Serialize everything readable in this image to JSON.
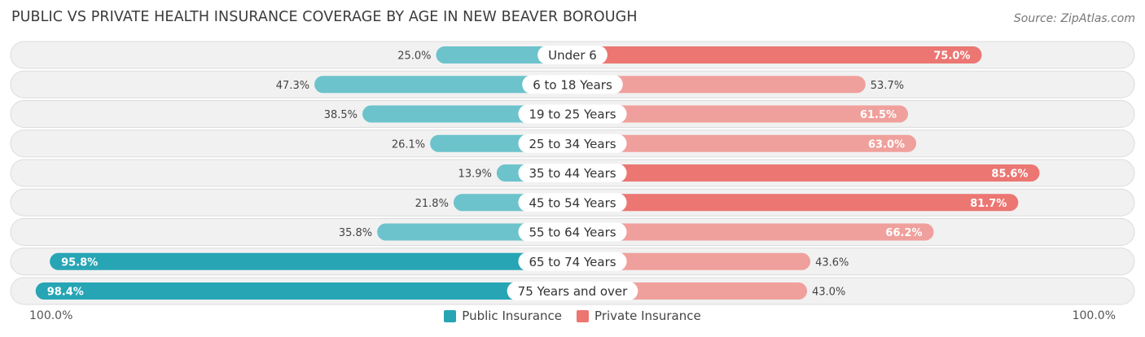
{
  "title": "PUBLIC VS PRIVATE HEALTH INSURANCE COVERAGE BY AGE IN NEW BEAVER BOROUGH",
  "source": "Source: ZipAtlas.com",
  "axis_left_label": "100.0%",
  "axis_right_label": "100.0%",
  "colors": {
    "public": "#6cc3cc",
    "public_strong": "#27a5b5",
    "private": "#f0a09c",
    "private_strong": "#eb7672",
    "row_bg": "#f1f1f1",
    "row_border": "#dcdcdc"
  },
  "chart_data": {
    "type": "bar",
    "orientation": "horizontal-diverging",
    "categories": [
      "Under 6",
      "6 to 18 Years",
      "19 to 25 Years",
      "25 to 34 Years",
      "35 to 44 Years",
      "45 to 54 Years",
      "55 to 64 Years",
      "65 to 74 Years",
      "75 Years and over"
    ],
    "series": [
      {
        "name": "Public Insurance",
        "values": [
          25.0,
          47.3,
          38.5,
          26.1,
          13.9,
          21.8,
          35.8,
          95.8,
          98.4
        ],
        "labels": [
          "25.0%",
          "47.3%",
          "38.5%",
          "26.1%",
          "13.9%",
          "21.8%",
          "35.8%",
          "95.8%",
          "98.4%"
        ]
      },
      {
        "name": "Private Insurance",
        "values": [
          75.0,
          53.7,
          61.5,
          63.0,
          85.6,
          81.7,
          66.2,
          43.6,
          43.0
        ],
        "labels": [
          "75.0%",
          "53.7%",
          "61.5%",
          "63.0%",
          "85.6%",
          "81.7%",
          "66.2%",
          "43.6%",
          "43.0%"
        ]
      }
    ],
    "xlim": [
      -100,
      100
    ],
    "legend_position": "bottom-center"
  }
}
